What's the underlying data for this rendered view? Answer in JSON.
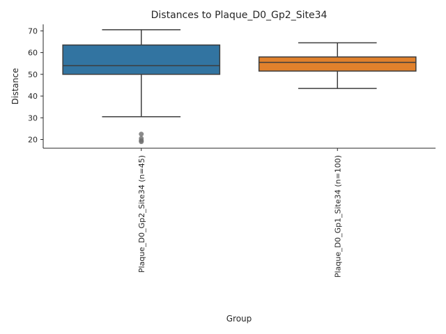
{
  "chart_data": {
    "type": "box",
    "title": "Distances to Plaque_D0_Gp2_Site34",
    "xlabel": "Group",
    "ylabel": "Distance",
    "ylim": [
      16,
      73
    ],
    "yticks": [
      20,
      30,
      40,
      50,
      60,
      70
    ],
    "grid": false,
    "legend": "none",
    "groups": [
      {
        "label": "Plaque_D0_Gp2_Site34 (n=45)",
        "color": "#3274a1",
        "whisker_low": 30.5,
        "q1": 50.0,
        "median": 54.0,
        "q3": 63.5,
        "whisker_high": 70.5,
        "outliers": [
          22.5,
          20.5,
          19.5,
          19.0
        ]
      },
      {
        "label": "Plaque_D0_Gp1_Site34 (n=100)",
        "color": "#e1812c",
        "whisker_low": 43.5,
        "q1": 51.5,
        "median": 55.5,
        "q3": 58.0,
        "whisker_high": 64.5,
        "outliers": []
      }
    ]
  }
}
